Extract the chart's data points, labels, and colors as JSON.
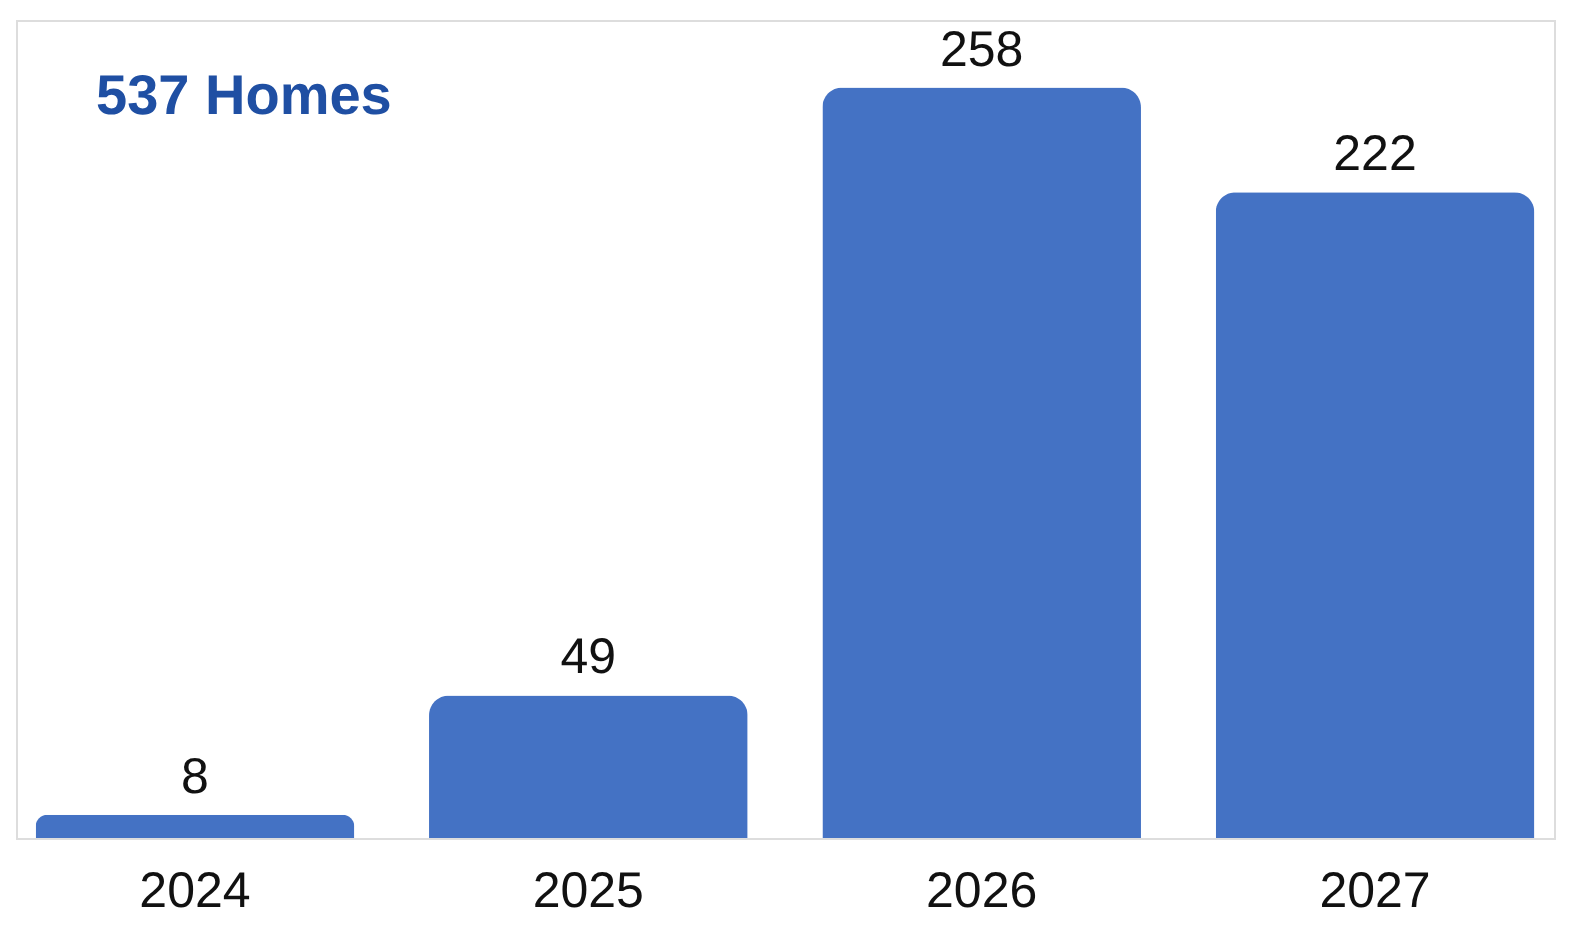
{
  "chart_data": {
    "type": "bar",
    "title": "537 Homes",
    "categories": [
      "2024",
      "2025",
      "2026",
      "2027"
    ],
    "values": [
      8,
      49,
      258,
      222
    ],
    "color": "#4472c4",
    "data_labels": true
  }
}
